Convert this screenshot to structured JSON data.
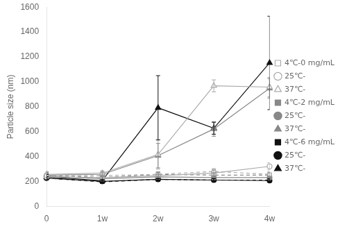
{
  "chart_data": {
    "type": "line",
    "ylabel": "Particle size (nm)",
    "categories": [
      "0",
      "1w",
      "2w",
      "3w",
      "4w"
    ],
    "ylim": [
      0,
      1600
    ],
    "yticks": [
      0,
      200,
      400,
      600,
      800,
      1000,
      1200,
      1400,
      1600
    ],
    "grid": false,
    "legend": "right",
    "series": [
      {
        "name": "4℃-0 mg/mL",
        "color": "#aaaaaa",
        "marker": "square-open",
        "line_style": "dashed",
        "values": [
          248,
          248,
          258,
          282,
          258
        ],
        "yerr": [
          32,
          28,
          22,
          22,
          22
        ]
      },
      {
        "name": "25℃-",
        "color": "#aaaaaa",
        "marker": "circle-open",
        "line_style": "solid",
        "values": [
          238,
          232,
          248,
          268,
          322
        ],
        "yerr": [
          22,
          15,
          18,
          22,
          28
        ]
      },
      {
        "name": "37℃-",
        "color": "#aaaaaa",
        "marker": "triangle-open",
        "line_style": "solid",
        "values": [
          258,
          268,
          418,
          968,
          958
        ],
        "yerr": [
          22,
          18,
          118,
          48,
          78
        ]
      },
      {
        "name": "4℃-2 mg/mL",
        "color": "#888888",
        "marker": "square",
        "line_style": "dashed",
        "values": [
          252,
          232,
          258,
          252,
          252
        ],
        "yerr": [
          22,
          18,
          18,
          18,
          18
        ]
      },
      {
        "name": "25℃-",
        "color": "#888888",
        "marker": "circle",
        "line_style": "solid",
        "values": [
          245,
          222,
          238,
          232,
          232
        ],
        "yerr": [
          18,
          12,
          18,
          12,
          12
        ]
      },
      {
        "name": "37℃-",
        "color": "#888888",
        "marker": "triangle",
        "line_style": "solid",
        "values": [
          252,
          258,
          408,
          622,
          948
        ],
        "yerr": [
          18,
          18,
          98,
          58,
          78
        ]
      },
      {
        "name": "4℃-6 mg/mL",
        "color": "#111111",
        "marker": "square",
        "line_style": "dashed",
        "values": [
          228,
          198,
          218,
          212,
          212
        ],
        "yerr": [
          12,
          12,
          8,
          12,
          12
        ]
      },
      {
        "name": "25℃-",
        "color": "#111111",
        "marker": "circle",
        "line_style": "solid",
        "values": [
          228,
          202,
          218,
          212,
          208
        ],
        "yerr": [
          12,
          8,
          8,
          12,
          12
        ]
      },
      {
        "name": "37℃-",
        "color": "#111111",
        "marker": "triangle",
        "line_style": "solid",
        "values": [
          238,
          208,
          792,
          628,
          1152
        ],
        "yerr": [
          18,
          12,
          258,
          48,
          375
        ]
      }
    ]
  }
}
